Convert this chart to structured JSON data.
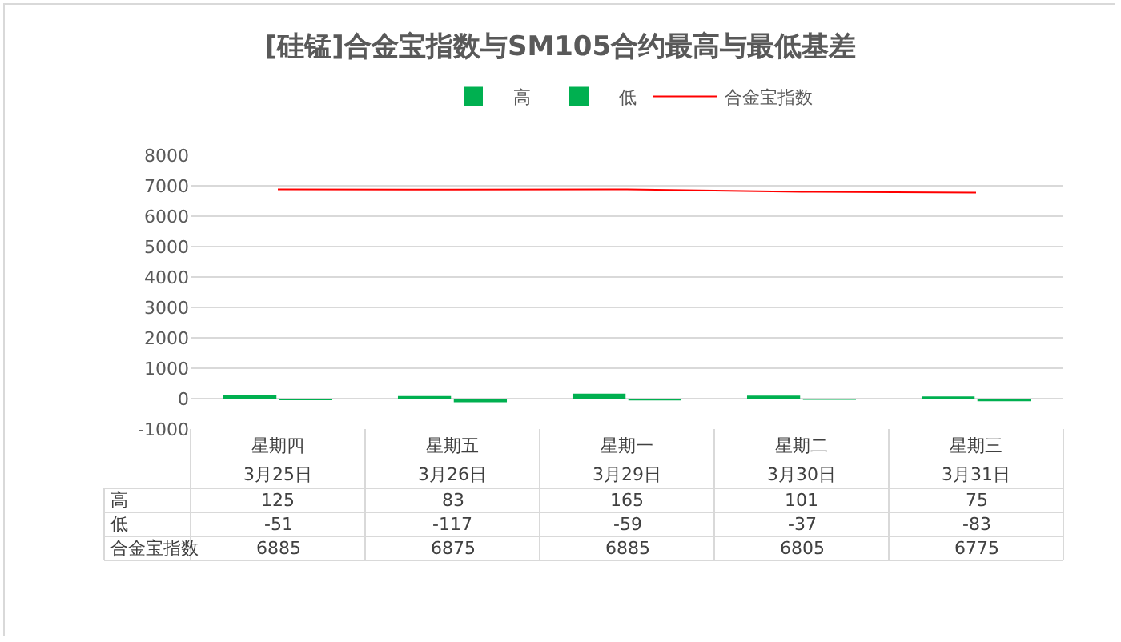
{
  "chart_data": {
    "type": "bar",
    "title": "[硅锰]合金宝指数与SM105合约最高与最低基差",
    "categories": [
      "星期四\n3月25日",
      "星期五\n3月26日",
      "星期一\n3月29日",
      "星期二\n3月30日",
      "星期三\n3月31日"
    ],
    "series": [
      {
        "name": "高",
        "color": "#00b050",
        "values": [
          125,
          83,
          165,
          101,
          75
        ]
      },
      {
        "name": "低",
        "color": "#00b050",
        "values": [
          -51,
          -117,
          -59,
          -37,
          -83
        ]
      },
      {
        "name": "合金宝指数",
        "type": "line",
        "color": "#ff0000",
        "values": [
          6885,
          6875,
          6885,
          6805,
          6775
        ]
      }
    ],
    "ylim": [
      -1000,
      8000
    ],
    "yticks": [
      -1000,
      0,
      1000,
      2000,
      3000,
      4000,
      5000,
      6000,
      7000,
      8000
    ],
    "grid": "y",
    "legend": "top",
    "data_labels": true
  }
}
